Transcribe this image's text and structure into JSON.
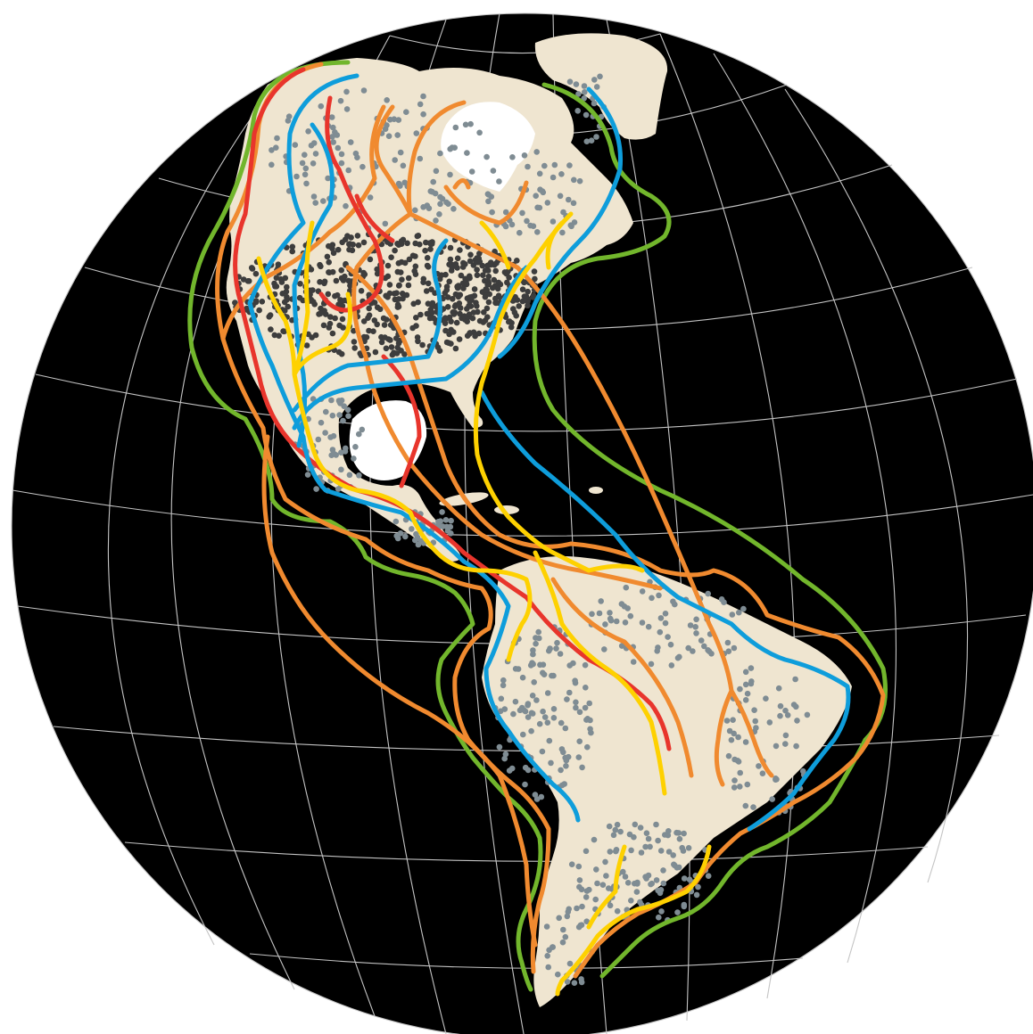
{
  "map": {
    "projection": "orthographic-globe",
    "colors": {
      "background": "#ffffff",
      "graticule": "#c4c4c4",
      "land": "#efe5d0",
      "land_border": "#ffffff",
      "sightings_north": "#3d3d3d",
      "sightings_south": "#7f8c93"
    },
    "layers": [
      "graticule",
      "land",
      "sightings",
      "migration-routes"
    ],
    "routes": [
      {
        "id": "green",
        "color": "#72b62c"
      },
      {
        "id": "orange",
        "color": "#f08a2f"
      },
      {
        "id": "red",
        "color": "#e8352c"
      },
      {
        "id": "blue",
        "color": "#0e9ddb"
      },
      {
        "id": "yellow",
        "color": "#fed100"
      }
    ]
  }
}
